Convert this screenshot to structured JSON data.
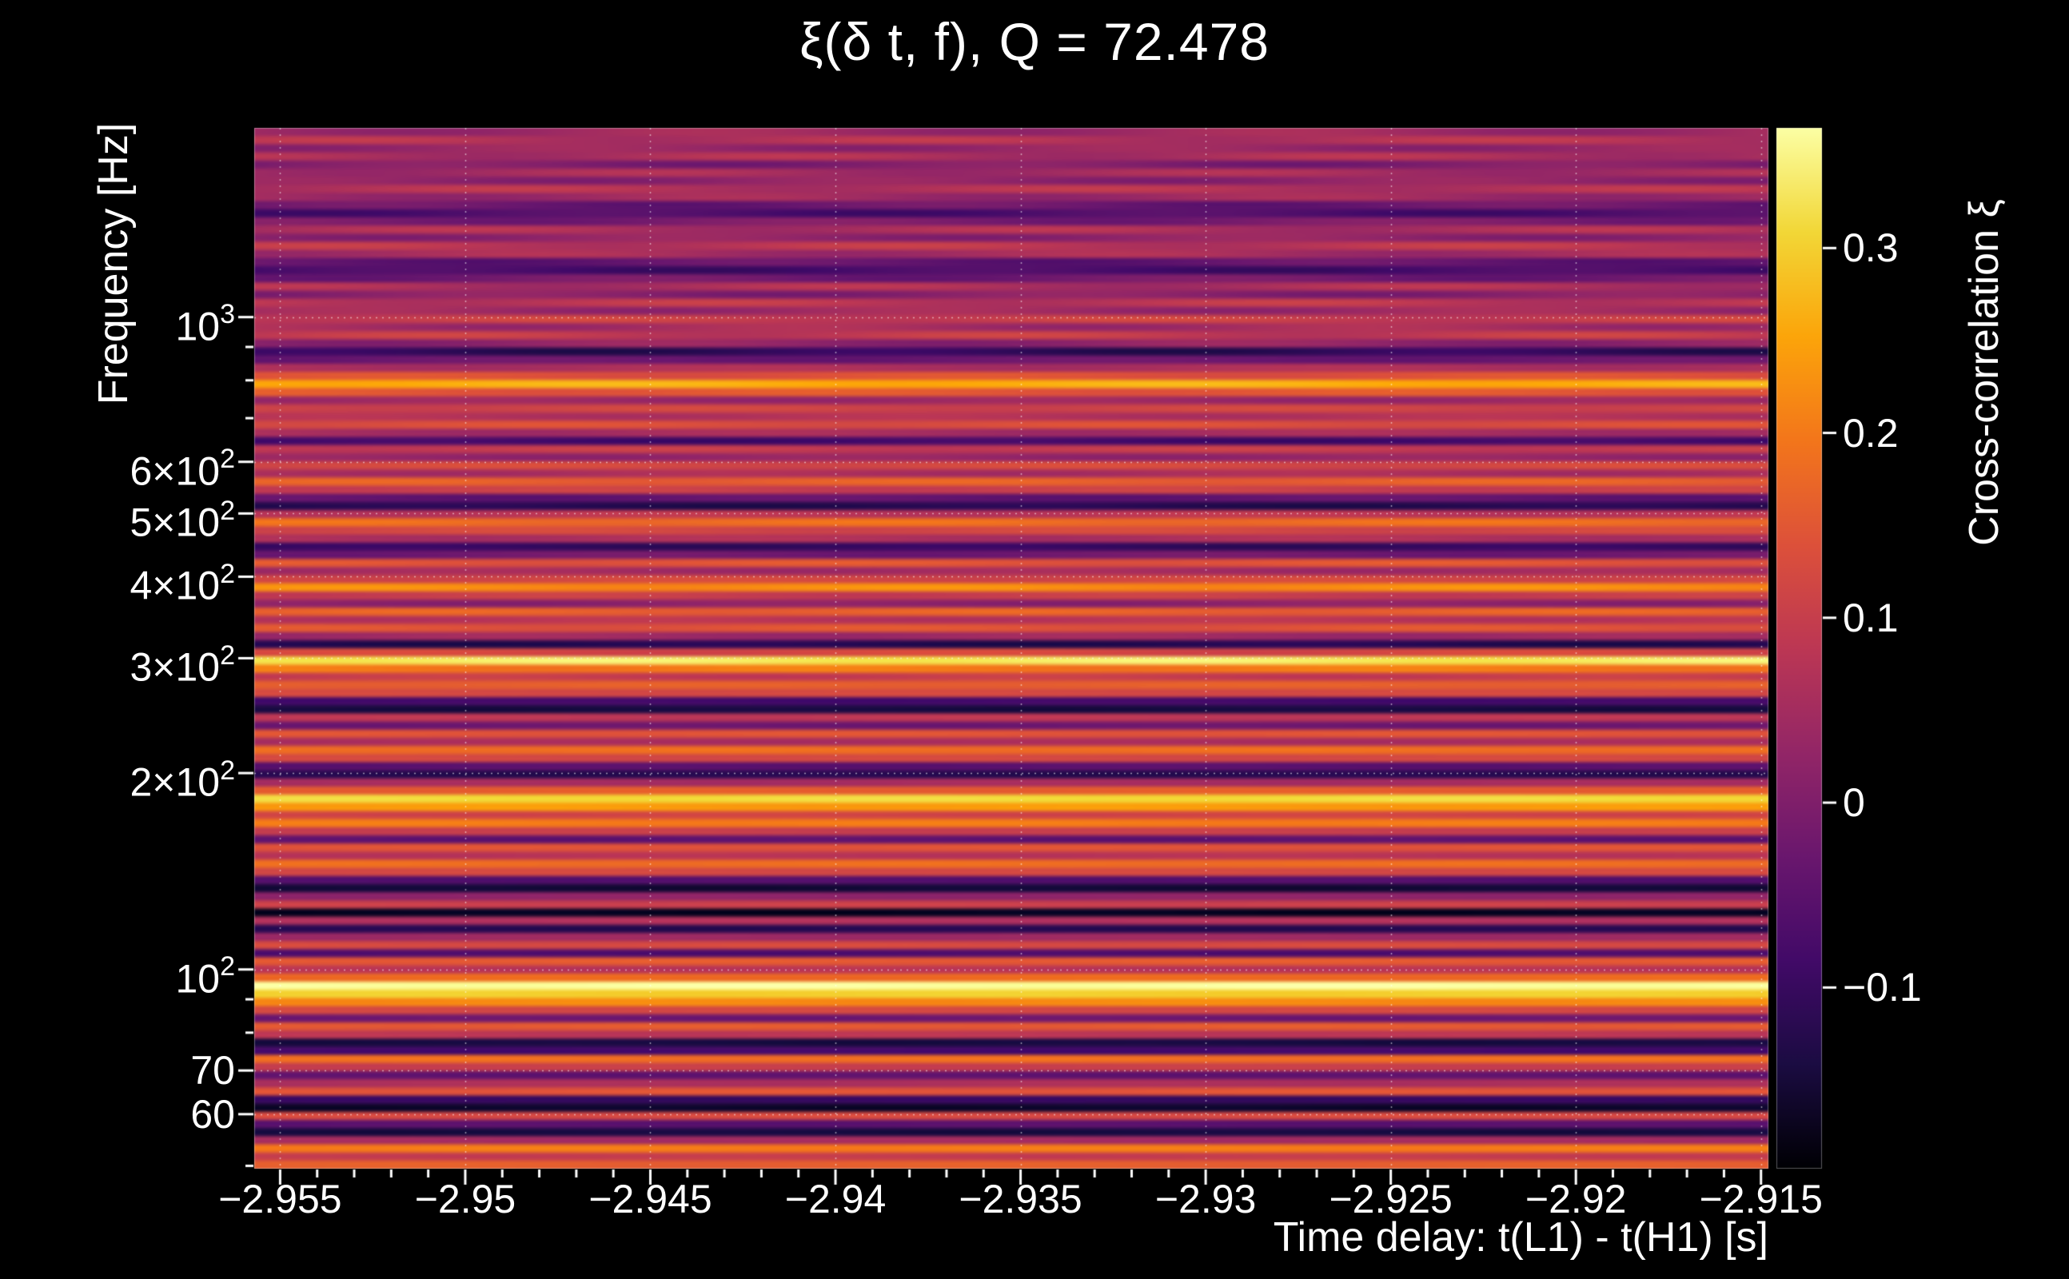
{
  "page": {
    "background": "#000000",
    "text_color": "#ffffff",
    "grid_color": "rgba(255,255,255,0.55)"
  },
  "chart_data": {
    "type": "heatmap",
    "title": "ξ(δ t, f), Q = 72.478",
    "xlabel": "Time delay: t(L1) - t(H1) [s]",
    "ylabel": "Frequency [Hz]",
    "colorbar_label": "Cross-correlation ξ",
    "x_range": [
      -2.9557,
      -2.9148
    ],
    "x_ticks": [
      -2.955,
      -2.95,
      -2.945,
      -2.94,
      -2.935,
      -2.93,
      -2.925,
      -2.92,
      -2.915
    ],
    "x_tick_labels": [
      "−2.955",
      "−2.95",
      "−2.945",
      "−2.94",
      "−2.935",
      "−2.93",
      "−2.925",
      "−2.92",
      "−2.915"
    ],
    "x_minor_step": 0.001,
    "y_scale": "log",
    "y_range_hz": [
      49.5,
      1950
    ],
    "y_ticks": [
      {
        "v": 1000,
        "t": "10",
        "s": "3"
      },
      {
        "v": 600,
        "t": "6×10",
        "s": "2"
      },
      {
        "v": 500,
        "t": "5×10",
        "s": "2"
      },
      {
        "v": 400,
        "t": "4×10",
        "s": "2"
      },
      {
        "v": 300,
        "t": "3×10",
        "s": "2"
      },
      {
        "v": 200,
        "t": "2×10",
        "s": "2"
      },
      {
        "v": 100,
        "t": "10",
        "s": "2"
      },
      {
        "v": 70,
        "t": "70",
        "s": ""
      },
      {
        "v": 60,
        "t": "60",
        "s": ""
      }
    ],
    "y_minor_ticks": [
      50,
      80,
      90,
      700,
      800,
      900
    ],
    "colorbar": {
      "min": -0.198,
      "max": 0.365,
      "ticks": [
        {
          "v": 0.3,
          "l": "0.3"
        },
        {
          "v": 0.2,
          "l": "0.2"
        },
        {
          "v": 0.1,
          "l": "0.1"
        },
        {
          "v": 0.0,
          "l": "0"
        },
        {
          "v": -0.1,
          "l": "−0.1"
        }
      ]
    },
    "colormap": {
      "name": "inferno",
      "anchors": [
        "#000004",
        "#1b0c42",
        "#420a68",
        "#6a176e",
        "#932667",
        "#bc3754",
        "#dd513a",
        "#f3761b",
        "#fca50a",
        "#f2d737",
        "#fcffa4"
      ]
    },
    "profile": {
      "f_min_hz": 49.5,
      "f_max_hz": 1950,
      "n_rows": 128,
      "xi_values": [
        0.16,
        0.1,
        0.2,
        0.05,
        -0.14,
        -0.05,
        0.12,
        -0.16,
        -0.1,
        0.14,
        0.06,
        -0.04,
        0.1,
        0.18,
        -0.08,
        -0.14,
        0.08,
        0.15,
        -0.02,
        0.12,
        0.22,
        0.3,
        0.36,
        0.18,
        0.08,
        0.15,
        -0.06,
        0.12,
        0.04,
        -0.12,
        0.06,
        -0.17,
        0.1,
        0.02,
        -0.15,
        -0.06,
        0.12,
        0.18,
        0.08,
        0.14,
        -0.04,
        0.1,
        0.2,
        0.12,
        0.24,
        0.31,
        0.16,
        0.05,
        -0.12,
        -0.05,
        0.12,
        0.18,
        0.06,
        0.14,
        -0.02,
        0.08,
        -0.14,
        -0.08,
        0.12,
        0.16,
        0.1,
        0.2,
        0.33,
        0.12,
        -0.12,
        0.04,
        0.14,
        0.08,
        0.16,
        0.02,
        0.1,
        0.22,
        0.12,
        0.05,
        0.14,
        -0.02,
        -0.1,
        0.06,
        0.12,
        0.18,
        0.08,
        -0.12,
        -0.04,
        0.1,
        0.16,
        0.06,
        0.12,
        0.03,
        0.09,
        -0.08,
        0.05,
        0.13,
        0.07,
        0.11,
        0.04,
        0.15,
        0.26,
        0.14,
        0.06,
        -0.03,
        -0.11,
        0.02,
        0.09,
        0.05,
        0.1,
        0.04,
        0.08,
        0.01,
        0.06,
        -0.02,
        -0.08,
        -0.04,
        0.05,
        0.08,
        0.02,
        0.06,
        -0.01,
        -0.07,
        -0.03,
        0.04,
        0.07,
        0.02,
        0.05,
        0.0,
        0.06,
        0.03,
        0.07,
        0.04
      ]
    },
    "time_ripple": {
      "cycles": 2.6,
      "phase_step": 2.399,
      "amps": [
        [
          0,
          0.005
        ],
        [
          60,
          0.012
        ],
        [
          100,
          0.022
        ]
      ]
    }
  }
}
